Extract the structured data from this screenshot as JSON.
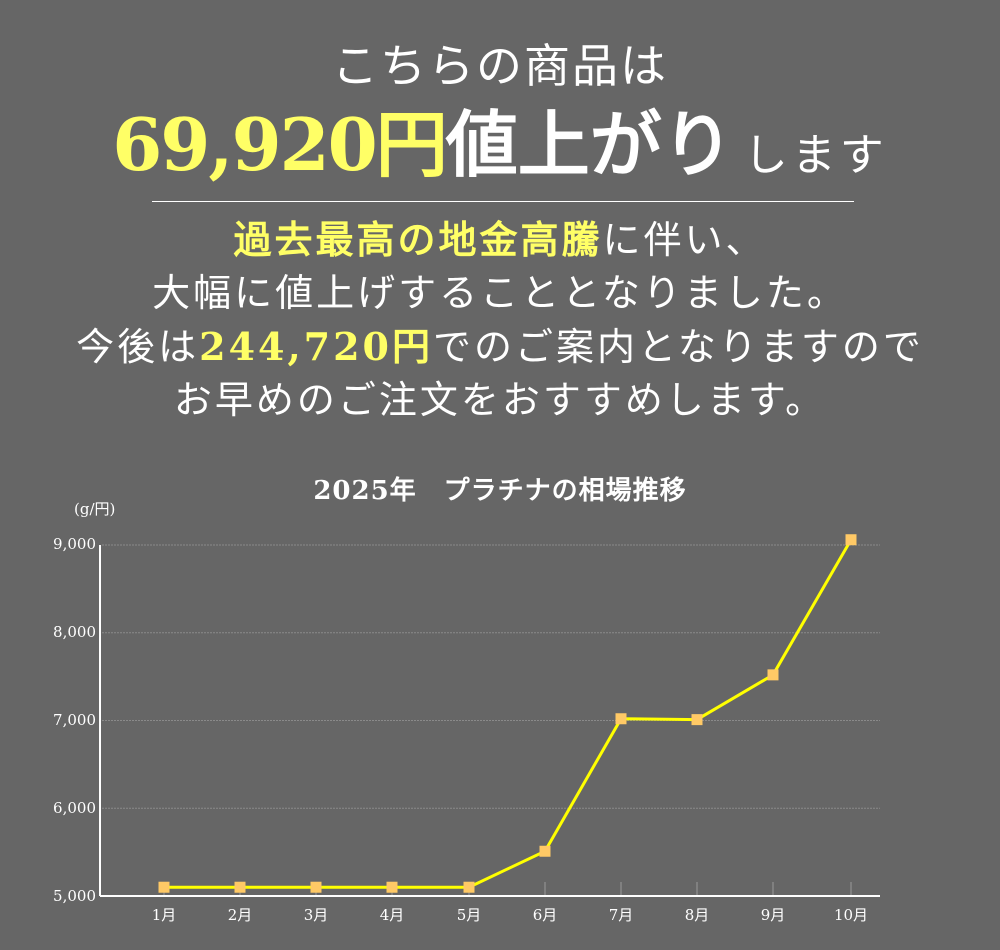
{
  "headline": {
    "line1": "こちらの商品は",
    "price_increase": "69,920円",
    "rise_word": "値上がり",
    "suffix": "します"
  },
  "body": {
    "line1_highlight": "過去最高の地金高騰",
    "line1_rest": "に伴い、",
    "line2": "大幅に値上げすることとなりました。",
    "line3_prefix": "今後は",
    "line3_highlight": "244,720円",
    "line3_rest": "でのご案内となりますので",
    "line4": "お早めのご注文をおすすめします。"
  },
  "colors": {
    "background": "#666666",
    "text": "#ffffff",
    "highlight": "#ffff66",
    "line": "#ffff00",
    "marker": "#ffc966",
    "grid": "#8a8a8a"
  },
  "chart_data": {
    "type": "line",
    "title": "2025年　プラチナの相場推移",
    "xlabel": "",
    "ylabel": "(g/円)",
    "categories": [
      "1月",
      "2月",
      "3月",
      "4月",
      "5月",
      "6月",
      "7月",
      "8月",
      "9月",
      "10月"
    ],
    "series": [
      {
        "name": "プラチナ",
        "values": [
          5100,
          5100,
          5100,
          5100,
          5100,
          5510,
          7020,
          7010,
          7520,
          9060
        ]
      }
    ],
    "y_ticks": [
      "5,000",
      "6,000",
      "7,000",
      "8,000",
      "9,000"
    ],
    "ylim": [
      5000,
      9000
    ],
    "grid": true,
    "legend": "none"
  }
}
